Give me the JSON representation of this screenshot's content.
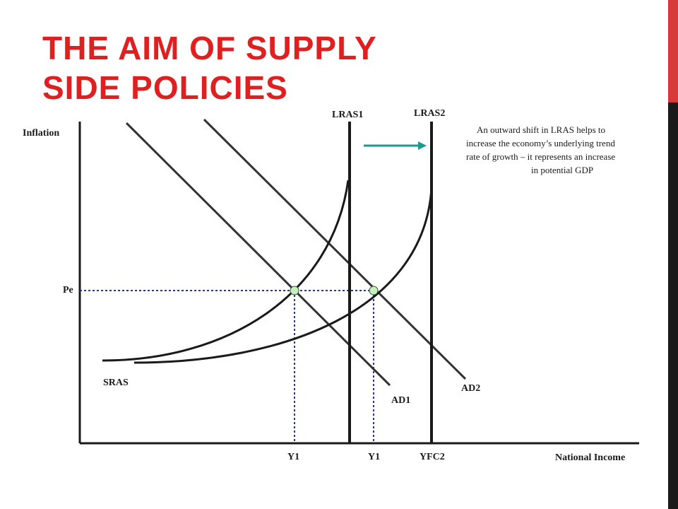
{
  "slide": {
    "title_line1": "THE AIM OF SUPPLY",
    "title_line2": "SIDE POLICIES"
  },
  "diagram": {
    "axis_y_label": "Inflation",
    "axis_x_label": "National Income",
    "price_label": "Pe",
    "curves": {
      "lras1": "LRAS1",
      "lras2": "LRAS2",
      "sras": "SRAS",
      "ad1": "AD1",
      "ad2": "AD2"
    },
    "x_ticks": {
      "y1_first": "Y1",
      "y1_second": "Y1",
      "yfc2": "YFC2"
    },
    "annotation": [
      "An outward shift in LRAS helps to",
      "increase the economy’s underlying trend",
      "rate of growth – it represents an increase",
      "in potential GDP"
    ],
    "colors": {
      "title": "#e02020",
      "guide_lines": "#2233aa",
      "arrow": "#1a9a8a",
      "points": "#c8efc0"
    }
  }
}
